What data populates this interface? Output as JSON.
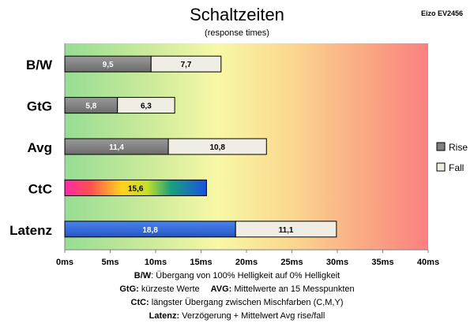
{
  "title": "Schaltzeiten",
  "subtitle": "(response times)",
  "model": "Eizo EV2456",
  "chart_data": {
    "type": "bar",
    "orientation": "horizontal",
    "stacked": true,
    "categories": [
      "B/W",
      "GtG",
      "Avg",
      "CtC",
      "Latenz"
    ],
    "series": [
      {
        "name": "Rise",
        "values": [
          9.5,
          5.8,
          11.4,
          15.6,
          18.8
        ],
        "labels": [
          "9,5",
          "5,8",
          "11,4",
          "15,6",
          "18,8"
        ]
      },
      {
        "name": "Fall",
        "values": [
          7.7,
          6.3,
          10.8,
          null,
          11.1
        ],
        "labels": [
          "7,7",
          "6,3",
          "10,8",
          "",
          "11,1"
        ]
      }
    ],
    "xlim": [
      0,
      40
    ],
    "xticks": [
      "0ms",
      "5ms",
      "10ms",
      "15ms",
      "20ms",
      "25ms",
      "30ms",
      "35ms",
      "40ms"
    ],
    "legend_position": "right",
    "background": "gradient green-yellow-orange-red",
    "colors": {
      "rise": "#808080",
      "fall": "#f0eee4",
      "latenz_rise": "#3a6fd8",
      "ctc": "rainbow gradient"
    }
  },
  "footer": {
    "line1_bold": "B/W",
    "line1_text": ":  Übergang von 100% Helligkeit auf 0% Helligkeit",
    "line2_bold_a": "GtG:",
    "line2_text_a": " kürzeste  Werte",
    "line2_bold_b": "AVG:",
    "line2_text_b": " Mittelwerte  an 15 Messpunkten",
    "line3_bold": "CtC:",
    "line3_text": " längster Übergang  zwischen Mischfarben  (C,M,Y)",
    "line4_bold": "Latenz:",
    "line4_text": " Verzögerung  + Mittelwert  Avg rise/fall"
  }
}
